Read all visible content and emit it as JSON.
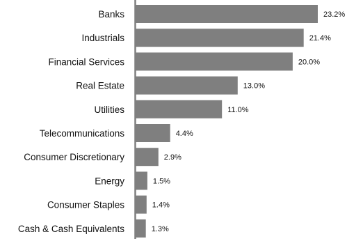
{
  "chart_data": {
    "type": "bar",
    "orientation": "horizontal",
    "categories": [
      "Banks",
      "Industrials",
      "Financial Services",
      "Real Estate",
      "Utilities",
      "Telecommunications",
      "Consumer Discretionary",
      "Energy",
      "Consumer Staples",
      "Cash & Cash Equivalents"
    ],
    "values": [
      23.2,
      21.4,
      20.0,
      13.0,
      11.0,
      4.4,
      2.9,
      1.5,
      1.4,
      1.3
    ],
    "value_labels": [
      "23.2%",
      "21.4%",
      "20.0%",
      "13.0%",
      "11.0%",
      "4.4%",
      "2.9%",
      "1.5%",
      "1.4%",
      "1.3%"
    ],
    "title": "",
    "xlabel": "",
    "ylabel": "",
    "xlim": [
      0,
      25
    ],
    "grid": false,
    "legend": "none"
  },
  "colors": {
    "bar": "#7f7f7f",
    "axis": "#7f7f7f",
    "text": "#111111"
  }
}
